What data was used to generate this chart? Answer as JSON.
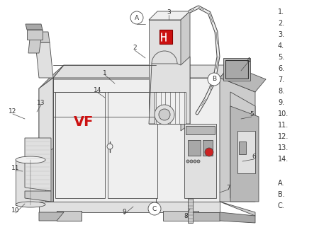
{
  "figsize": [
    4.74,
    3.18
  ],
  "dpi": 100,
  "bg": "#ffffff",
  "lc": "#4a4a4a",
  "lw": 0.6,
  "fc_light": "#efefef",
  "fc_mid": "#e0e0e0",
  "fc_dark": "#cccccc",
  "fc_darker": "#b8b8b8",
  "fc_darkest": "#a8a8a8",
  "red": "#cc1111",
  "tc": "#333333",
  "number_labels": [
    "1.",
    "2.",
    "3.",
    "4.",
    "5.",
    "6.",
    "7.",
    "8.",
    "9.",
    "10.",
    "11.",
    "12.",
    "13.",
    "14."
  ],
  "letter_labels": [
    "A.",
    "B.",
    "C."
  ]
}
